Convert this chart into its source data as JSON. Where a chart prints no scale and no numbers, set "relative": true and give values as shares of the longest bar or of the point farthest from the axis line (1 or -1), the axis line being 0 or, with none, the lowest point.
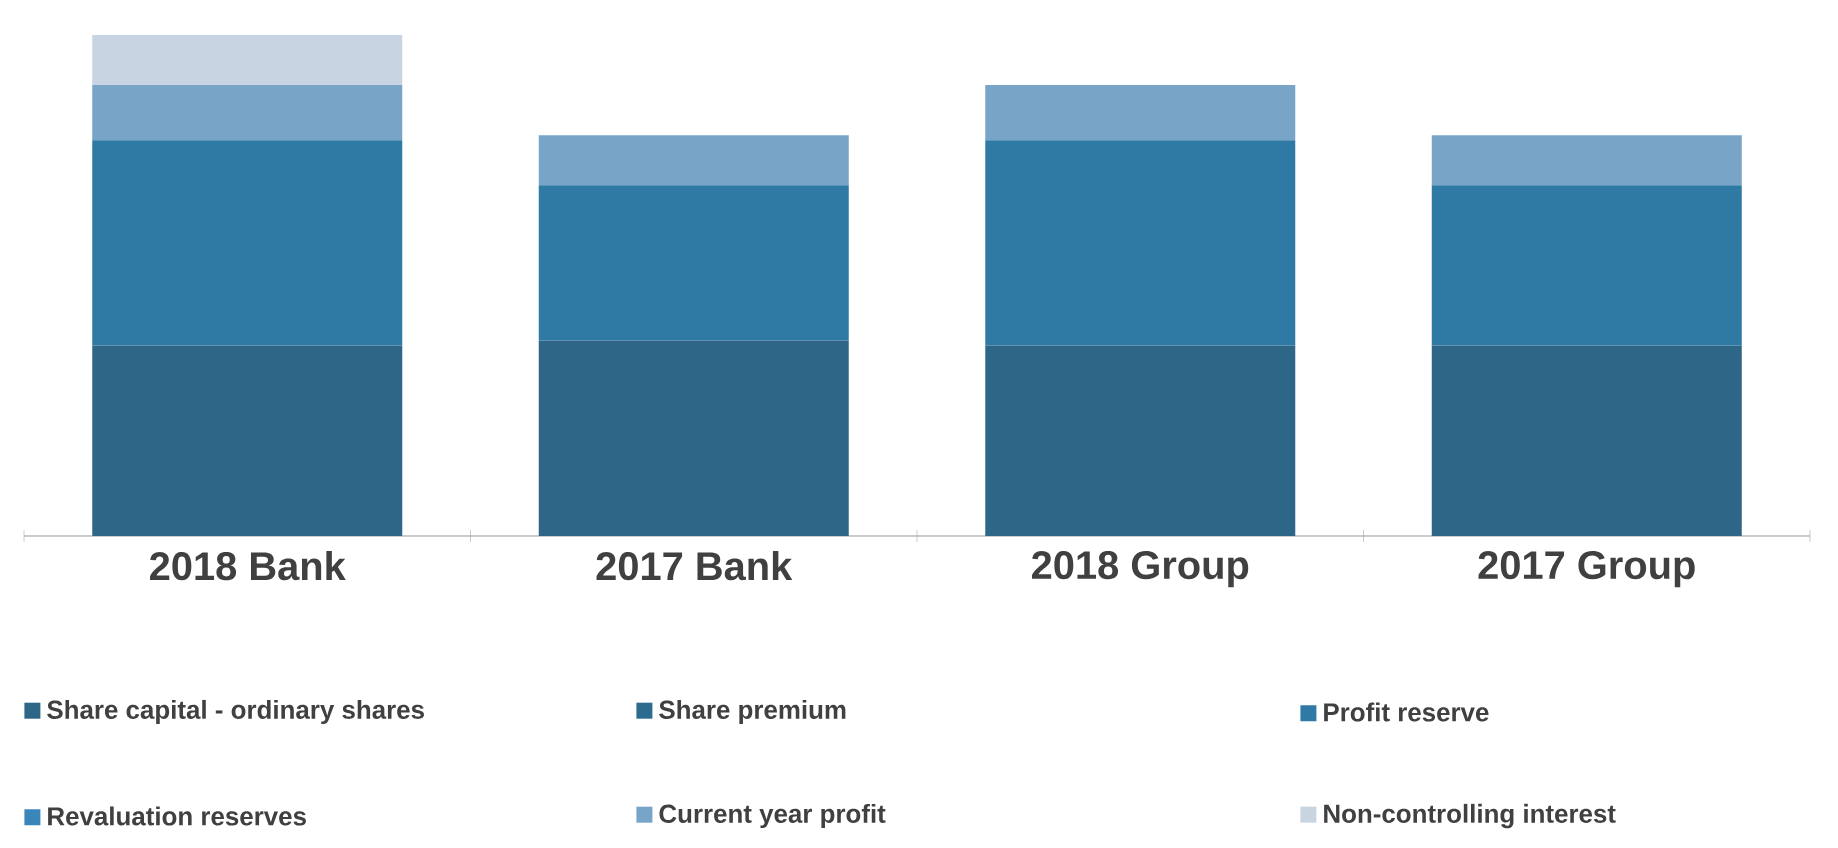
{
  "chart_data": {
    "type": "bar",
    "stacked": true,
    "relative": true,
    "legend": "bottom",
    "categories": [
      "2018 Bank",
      "2017 Bank",
      "2018 Group",
      "2017 Group"
    ],
    "series": [
      {
        "name": "Share capital - ordinary shares",
        "color": "#2e6688",
        "values": [
          0.38,
          0.39,
          0.38,
          0.38
        ]
      },
      {
        "name": "Share premium",
        "color": "#2c6a8e",
        "values": [
          0,
          0,
          0,
          0
        ]
      },
      {
        "name": "Profit reserve",
        "color": "#2f7aa5",
        "values": [
          0.41,
          0.31,
          0.41,
          0.32
        ]
      },
      {
        "name": "Revaluation reserves",
        "color": "#3a86bb",
        "values": [
          0,
          0,
          0,
          0
        ]
      },
      {
        "name": "Current year profit",
        "color": "#78a4c8",
        "values": [
          0.11,
          0.1,
          0.11,
          0.1
        ]
      },
      {
        "name": "Non-controlling interest",
        "color": "#c9d4e2",
        "values": [
          0.1,
          0,
          0,
          0
        ]
      }
    ]
  }
}
